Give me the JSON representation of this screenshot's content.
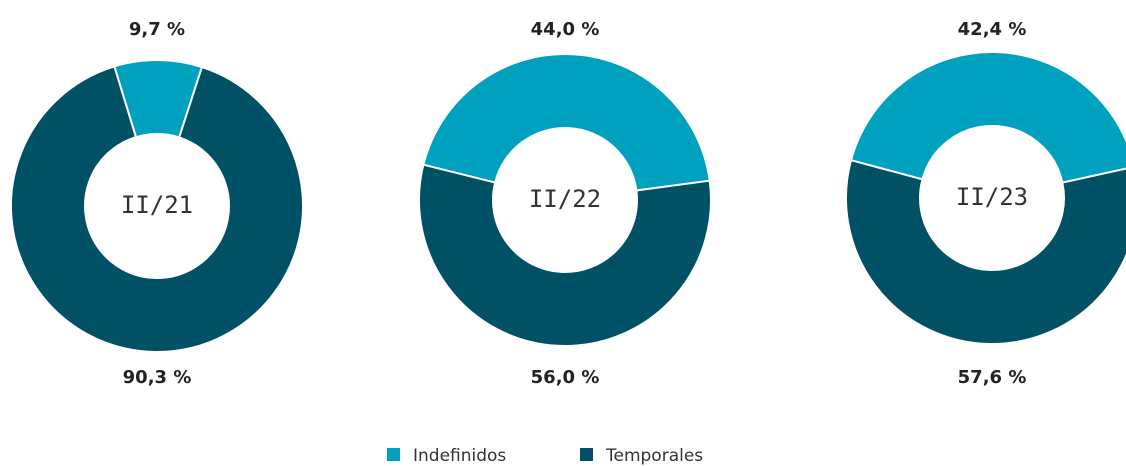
{
  "chart_data": [
    {
      "type": "pie",
      "center_label": "II/21",
      "categories": [
        "Indefinidos",
        "Temporales"
      ],
      "values": [
        9.7,
        90.3
      ],
      "value_labels": [
        "9,7 %",
        "90,3 %"
      ],
      "colors": [
        "#00a0bf",
        "#005066"
      ]
    },
    {
      "type": "pie",
      "center_label": "II/22",
      "categories": [
        "Indefinidos",
        "Temporales"
      ],
      "values": [
        44.0,
        56.0
      ],
      "value_labels": [
        "44,0 %",
        "56,0 %"
      ],
      "colors": [
        "#00a0bf",
        "#005066"
      ]
    },
    {
      "type": "pie",
      "center_label": "II/23",
      "categories": [
        "Indefinidos",
        "Temporales"
      ],
      "values": [
        42.4,
        57.6
      ],
      "value_labels": [
        "42,4 %",
        "57,6 %"
      ],
      "colors": [
        "#00a0bf",
        "#005066"
      ]
    }
  ]
}
